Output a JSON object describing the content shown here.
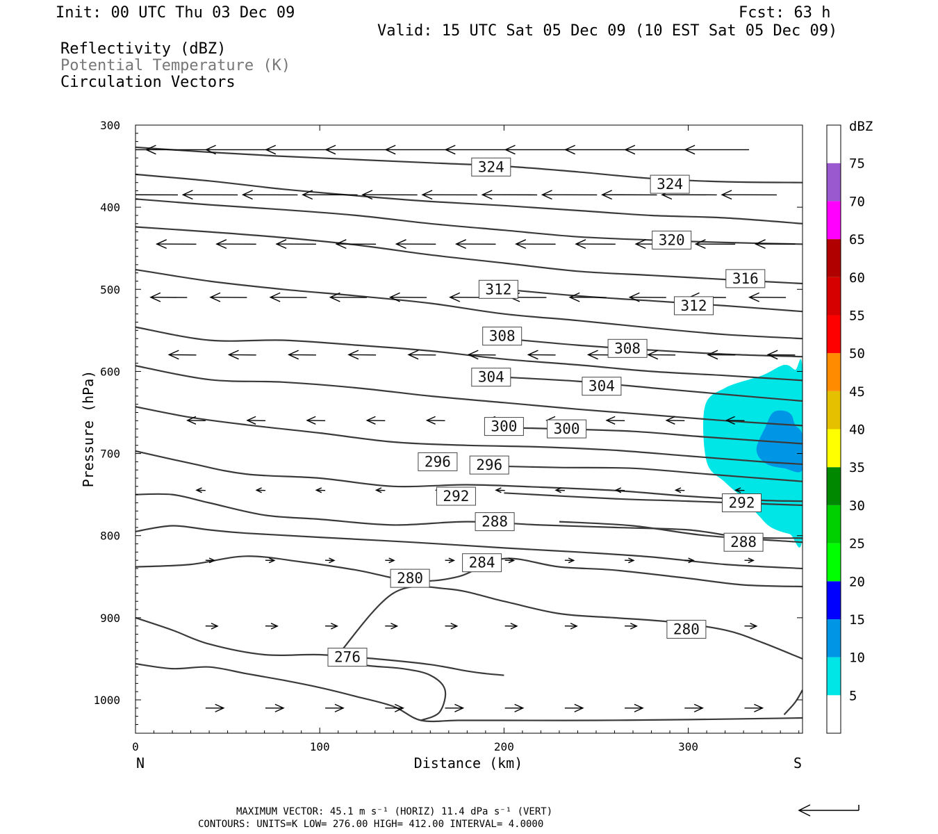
{
  "header": {
    "init": "Init: 00 UTC Thu 03 Dec 09",
    "fcst": "Fcst:   63 h",
    "valid": "Valid: 15 UTC Sat 05 Dec 09 (10 EST Sat 05 Dec 09)"
  },
  "legend": {
    "line1": "Reflectivity (dBZ)",
    "line2": "Potential Temperature (K)",
    "line3": "Circulation Vectors"
  },
  "colorbar": {
    "unit": "dBZ",
    "levels": [
      "5",
      "10",
      "15",
      "20",
      "25",
      "30",
      "35",
      "40",
      "45",
      "50",
      "55",
      "60",
      "65",
      "70",
      "75"
    ],
    "colors": [
      "#00e5e5",
      "#0096e5",
      "#0000ff",
      "#00ff00",
      "#00d000",
      "#008800",
      "#ffff00",
      "#e5c000",
      "#ff8c00",
      "#ff0000",
      "#d60000",
      "#b00000",
      "#ff00ff",
      "#9b59d0"
    ]
  },
  "footer": {
    "line1": "MAXIMUM VECTOR:  45.1 m s⁻¹ (HORIZ)        11.4 dPa s⁻¹ (VERT)",
    "line2": "CONTOURS:  UNITS=K  LOW=  276.00       HIGH=  412.00       INTERVAL=    4.0000"
  },
  "chart_data": {
    "type": "cross-section contour",
    "xlabel": "Distance (km)",
    "ylabel": "Pressure (hPa)",
    "x_ticks": [
      "0",
      "100",
      "200",
      "300"
    ],
    "y_ticks": [
      "300",
      "400",
      "500",
      "600",
      "700",
      "800",
      "900",
      "1000"
    ],
    "xlim": [
      0,
      362
    ],
    "ylim": [
      1040,
      300
    ],
    "y_reversed": true,
    "left_end_label": "N",
    "right_end_label": "S",
    "contour_units": "K",
    "contour_low": 276,
    "contour_high": 412,
    "contour_interval": 4,
    "contours": [
      {
        "theta": 276,
        "label_at": [
          115,
          948
        ],
        "points": [
          [
            0,
            956
          ],
          [
            20,
            962
          ],
          [
            40,
            960
          ],
          [
            60,
            968
          ],
          [
            80,
            976
          ],
          [
            100,
            985
          ],
          [
            120,
            996
          ],
          [
            140,
            1008
          ],
          [
            155,
            1025
          ],
          [
            175,
            1025
          ],
          [
            200,
            1025
          ],
          [
            250,
            1025
          ],
          [
            300,
            1024
          ],
          [
            362,
            1022
          ]
        ]
      },
      {
        "theta": 276,
        "label_at": null,
        "points": [
          [
            155,
            1025
          ],
          [
            165,
            1015
          ],
          [
            168,
            988
          ],
          [
            160,
            970
          ],
          [
            145,
            962
          ],
          [
            125,
            958
          ],
          [
            110,
            950
          ]
        ]
      },
      {
        "theta": 276,
        "label_at": null,
        "points": [
          [
            352,
            1018
          ],
          [
            358,
            1003
          ],
          [
            362,
            988
          ]
        ]
      },
      {
        "theta": 280,
        "label_at": [
          149,
          852
        ],
        "points": [
          [
            0,
            900
          ],
          [
            20,
            915
          ],
          [
            40,
            932
          ],
          [
            70,
            945
          ],
          [
            100,
            945
          ],
          [
            130,
            950
          ],
          [
            160,
            957
          ],
          [
            180,
            965
          ],
          [
            190,
            968
          ],
          [
            200,
            970
          ]
        ]
      },
      {
        "theta": 280,
        "label_at": [
          299,
          914
        ],
        "points": [
          [
            110,
            945
          ],
          [
            140,
            870
          ],
          [
            170,
            865
          ],
          [
            200,
            880
          ],
          [
            230,
            895
          ],
          [
            260,
            900
          ],
          [
            290,
            905
          ],
          [
            320,
            915
          ],
          [
            340,
            930
          ],
          [
            362,
            950
          ]
        ]
      },
      {
        "theta": 284,
        "label_at": [
          188,
          833
        ],
        "points": [
          [
            0,
            838
          ],
          [
            30,
            835
          ],
          [
            60,
            825
          ],
          [
            90,
            832
          ],
          [
            120,
            842
          ],
          [
            150,
            855
          ],
          [
            175,
            850
          ],
          [
            200,
            828
          ],
          [
            230,
            838
          ],
          [
            260,
            842
          ],
          [
            300,
            852
          ],
          [
            330,
            860
          ],
          [
            362,
            862
          ]
        ]
      },
      {
        "theta": 288,
        "label_at": [
          195,
          783
        ],
        "points": [
          [
            0,
            795
          ],
          [
            20,
            788
          ],
          [
            40,
            793
          ],
          [
            60,
            797
          ],
          [
            100,
            802
          ],
          [
            150,
            808
          ],
          [
            200,
            815
          ],
          [
            240,
            820
          ],
          [
            280,
            826
          ],
          [
            320,
            835
          ],
          [
            362,
            840
          ]
        ]
      },
      {
        "theta": 288,
        "label_at": [
          330,
          808
        ],
        "points": [
          [
            230,
            783
          ],
          [
            270,
            788
          ],
          [
            310,
            800
          ],
          [
            362,
            808
          ]
        ]
      },
      {
        "theta": 292,
        "label_at": [
          174,
          752
        ],
        "points": [
          [
            0,
            750
          ],
          [
            20,
            750
          ],
          [
            40,
            760
          ],
          [
            70,
            775
          ],
          [
            100,
            780
          ],
          [
            140,
            787
          ],
          [
            180,
            783
          ],
          [
            220,
            787
          ],
          [
            260,
            790
          ],
          [
            300,
            793
          ],
          [
            330,
            802
          ],
          [
            362,
            803
          ]
        ]
      },
      {
        "theta": 292,
        "label_at": [
          329,
          760
        ],
        "points": [
          [
            200,
            748
          ],
          [
            260,
            755
          ],
          [
            300,
            758
          ],
          [
            362,
            763
          ]
        ]
      },
      {
        "theta": 296,
        "label_at": [
          164,
          710
        ],
        "points": [
          [
            0,
            697
          ],
          [
            30,
            712
          ],
          [
            60,
            725
          ],
          [
            100,
            730
          ],
          [
            140,
            740
          ],
          [
            180,
            738
          ],
          [
            220,
            741
          ],
          [
            260,
            745
          ],
          [
            300,
            752
          ],
          [
            340,
            757
          ],
          [
            362,
            758
          ]
        ]
      },
      {
        "theta": 296,
        "label_at": [
          192,
          714
        ],
        "points": [
          [
            190,
            715
          ],
          [
            230,
            717
          ],
          [
            270,
            718
          ],
          [
            310,
            725
          ],
          [
            362,
            734
          ]
        ]
      },
      {
        "theta": 300,
        "label_at": [
          200,
          667
        ],
        "points": [
          [
            0,
            643
          ],
          [
            30,
            656
          ],
          [
            60,
            665
          ],
          [
            100,
            675
          ],
          [
            140,
            686
          ],
          [
            180,
            690
          ],
          [
            220,
            692
          ],
          [
            260,
            696
          ],
          [
            300,
            703
          ],
          [
            340,
            710
          ],
          [
            362,
            713
          ]
        ]
      },
      {
        "theta": 300,
        "label_at": [
          234,
          670
        ],
        "points": [
          [
            190,
            668
          ],
          [
            230,
            670
          ],
          [
            270,
            673
          ],
          [
            310,
            680
          ],
          [
            362,
            688
          ]
        ]
      },
      {
        "theta": 304,
        "label_at": [
          193,
          607
        ],
        "points": [
          [
            0,
            593
          ],
          [
            40,
            610
          ],
          [
            80,
            613
          ],
          [
            120,
            620
          ],
          [
            160,
            630
          ],
          [
            200,
            638
          ],
          [
            240,
            646
          ],
          [
            280,
            653
          ],
          [
            320,
            660
          ],
          [
            362,
            666
          ]
        ]
      },
      {
        "theta": 304,
        "label_at": [
          253,
          618
        ],
        "points": [
          [
            200,
            607
          ],
          [
            240,
            612
          ],
          [
            280,
            620
          ],
          [
            320,
            628
          ],
          [
            362,
            636
          ]
        ]
      },
      {
        "theta": 308,
        "label_at": [
          199,
          557
        ],
        "points": [
          [
            0,
            546
          ],
          [
            40,
            562
          ],
          [
            80,
            562
          ],
          [
            120,
            568
          ],
          [
            160,
            575
          ],
          [
            200,
            585
          ],
          [
            240,
            592
          ],
          [
            280,
            600
          ],
          [
            320,
            605
          ],
          [
            362,
            611
          ]
        ]
      },
      {
        "theta": 308,
        "label_at": [
          267,
          572
        ],
        "points": [
          [
            200,
            560
          ],
          [
            240,
            568
          ],
          [
            280,
            574
          ],
          [
            320,
            579
          ],
          [
            362,
            582
          ]
        ]
      },
      {
        "theta": 312,
        "label_at": [
          197,
          500
        ],
        "points": [
          [
            0,
            476
          ],
          [
            40,
            490
          ],
          [
            80,
            500
          ],
          [
            120,
            508
          ],
          [
            160,
            517
          ],
          [
            200,
            530
          ],
          [
            240,
            538
          ],
          [
            280,
            547
          ],
          [
            320,
            555
          ],
          [
            362,
            560
          ]
        ]
      },
      {
        "theta": 312,
        "label_at": [
          303,
          520
        ],
        "points": [
          [
            200,
            500
          ],
          [
            240,
            508
          ],
          [
            280,
            514
          ],
          [
            320,
            520
          ],
          [
            362,
            527
          ]
        ]
      },
      {
        "theta": 316,
        "label_at": [
          331,
          487
        ],
        "points": [
          [
            0,
            424
          ],
          [
            40,
            430
          ],
          [
            80,
            437
          ],
          [
            120,
            446
          ],
          [
            160,
            458
          ],
          [
            200,
            468
          ],
          [
            240,
            478
          ],
          [
            280,
            483
          ],
          [
            320,
            488
          ],
          [
            362,
            493
          ]
        ]
      },
      {
        "theta": 320,
        "label_at": [
          291,
          440
        ],
        "points": [
          [
            0,
            390
          ],
          [
            40,
            397
          ],
          [
            80,
            403
          ],
          [
            120,
            410
          ],
          [
            160,
            420
          ],
          [
            200,
            428
          ],
          [
            240,
            436
          ],
          [
            280,
            440
          ],
          [
            320,
            443
          ],
          [
            362,
            445
          ]
        ]
      },
      {
        "theta": 324,
        "label_at": [
          193,
          351
        ],
        "points": [
          [
            0,
            360
          ],
          [
            40,
            368
          ],
          [
            80,
            378
          ],
          [
            120,
            386
          ],
          [
            160,
            393
          ],
          [
            200,
            398
          ],
          [
            240,
            404
          ],
          [
            280,
            410
          ],
          [
            320,
            413
          ],
          [
            362,
            420
          ]
        ]
      },
      {
        "theta": 324,
        "label_at": [
          290,
          372
        ],
        "points": [
          [
            0,
            327
          ],
          [
            40,
            333
          ],
          [
            80,
            338
          ],
          [
            120,
            342
          ],
          [
            160,
            346
          ],
          [
            200,
            350
          ],
          [
            240,
            357
          ],
          [
            280,
            365
          ],
          [
            320,
            369
          ],
          [
            362,
            370
          ]
        ]
      }
    ],
    "reflectivity_areas": [
      {
        "dbz_min": 5,
        "dbz_max": 10,
        "points": [
          [
            309,
            643
          ],
          [
            320,
            620
          ],
          [
            340,
            605
          ],
          [
            352,
            592
          ],
          [
            358,
            598
          ],
          [
            362,
            600
          ],
          [
            362,
            800
          ],
          [
            355,
            798
          ],
          [
            345,
            790
          ],
          [
            338,
            775
          ],
          [
            330,
            755
          ],
          [
            320,
            735
          ],
          [
            310,
            710
          ]
        ]
      },
      {
        "dbz_min": 10,
        "dbz_max": 15,
        "points": [
          [
            337,
            695
          ],
          [
            342,
            667
          ],
          [
            346,
            650
          ],
          [
            352,
            648
          ],
          [
            356,
            653
          ],
          [
            358,
            665
          ],
          [
            362,
            678
          ],
          [
            362,
            720
          ],
          [
            352,
            718
          ],
          [
            342,
            712
          ]
        ]
      }
    ],
    "vector_rows": [
      {
        "p": 330,
        "x_start": 0,
        "x_end": 362,
        "u": -1.0,
        "w": 0.0
      },
      {
        "p": 385,
        "x_start": 15,
        "x_end": 362,
        "u": -0.85,
        "w": 0.05
      },
      {
        "p": 445,
        "x_start": 25,
        "x_end": 362,
        "u": -0.6,
        "w": 0.05
      },
      {
        "p": 510,
        "x_start": 20,
        "x_end": 362,
        "u": -0.55,
        "w": 0.1
      },
      {
        "p": 580,
        "x_start": 25,
        "x_end": 362,
        "u": -0.4,
        "w": 0.1
      },
      {
        "p": 660,
        "x_start": 30,
        "x_end": 362,
        "u": -0.25,
        "w": 0.1
      },
      {
        "p": 745,
        "x_start": 30,
        "x_end": 362,
        "u": -0.1,
        "w": 0.1
      },
      {
        "p": 830,
        "x_start": 30,
        "x_end": 362,
        "u": 0.1,
        "w": 0.05
      },
      {
        "p": 910,
        "x_start": 30,
        "x_end": 362,
        "u": 0.15,
        "w": 0.05
      },
      {
        "p": 1010,
        "x_start": 30,
        "x_end": 362,
        "u": 0.25,
        "w": 0.0
      }
    ]
  }
}
